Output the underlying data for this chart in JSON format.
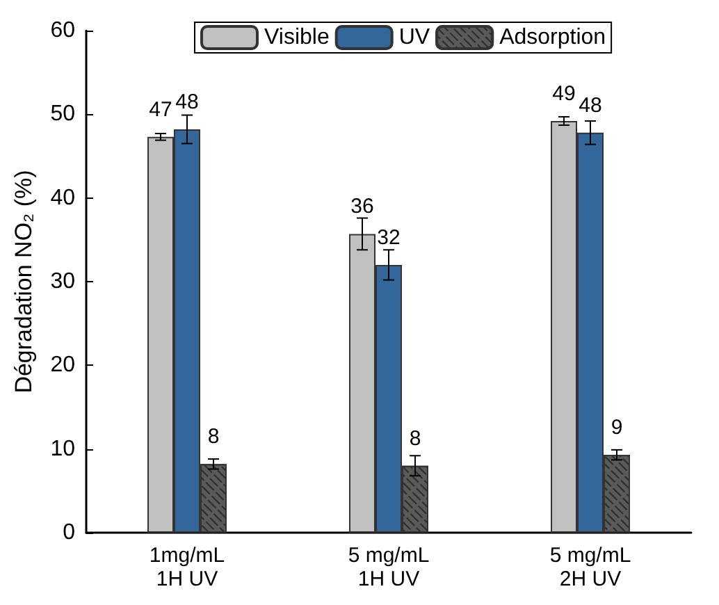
{
  "chart_data": {
    "type": "bar",
    "ylabel": "Dégradation NO₂ (%)",
    "categories": [
      "1mg/mL\n1H UV",
      "5 mg/mL\n1H UV",
      "5 mg/mL\n2H UV"
    ],
    "series": [
      {
        "name": "Visible",
        "color": "#c0c0c0",
        "values": [
          47.3,
          35.7,
          49.2
        ],
        "errors": [
          0.4,
          1.9,
          0.5
        ],
        "value_labels": [
          "47",
          "36",
          "49"
        ]
      },
      {
        "name": "UV",
        "color": "#336699",
        "values": [
          48.2,
          32.0,
          47.8
        ],
        "errors": [
          1.7,
          1.8,
          1.4
        ],
        "value_labels": [
          "48",
          "32",
          "48"
        ]
      },
      {
        "name": "Adsorption",
        "color": "#5a5a5a",
        "values": [
          8.2,
          8.0,
          9.3
        ],
        "errors": [
          0.6,
          1.2,
          0.6
        ],
        "value_labels": [
          "8",
          "8",
          "9"
        ]
      }
    ],
    "ylim": [
      0,
      60
    ],
    "yticks": [
      0,
      10,
      20,
      30,
      40,
      50,
      60
    ],
    "grid": false,
    "legend": "top"
  }
}
